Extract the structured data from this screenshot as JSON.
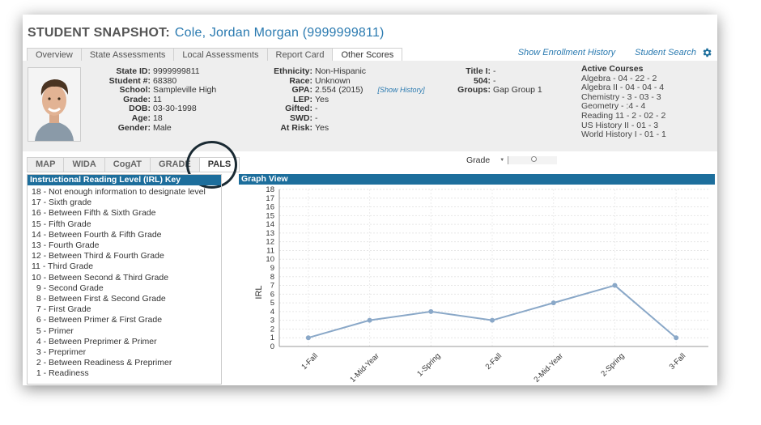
{
  "header": {
    "title": "STUDENT SNAPSHOT:",
    "student_name": "Cole, Jordan Morgan  (9999999811)"
  },
  "tabs": [
    "Overview",
    "State Assessments",
    "Local Assessments",
    "Report Card",
    "Other Scores"
  ],
  "links": {
    "enrollment": "Show Enrollment History",
    "search": "Student Search"
  },
  "student": [
    {
      "label": "State ID:",
      "value": "9999999811"
    },
    {
      "label": "Student #:",
      "value": "68380"
    },
    {
      "label": "School:",
      "value": "Sampleville High"
    },
    {
      "label": "Grade:",
      "value": "11"
    },
    {
      "label": "DOB:",
      "value": "03-30-1998"
    },
    {
      "label": "Age:",
      "value": "18"
    },
    {
      "label": "Gender:",
      "value": "Male"
    }
  ],
  "demographics": [
    {
      "label": "Ethnicity:",
      "value": "Non-Hispanic"
    },
    {
      "label": "Race:",
      "value": "Unknown"
    },
    {
      "label": "GPA:",
      "value": "2.554 (2015)"
    },
    {
      "label": "LEP:",
      "value": "Yes"
    },
    {
      "label": "Gifted:",
      "value": "-"
    },
    {
      "label": "SWD:",
      "value": "-"
    },
    {
      "label": "At Risk:",
      "value": "Yes"
    }
  ],
  "show_history": "[Show History]",
  "programs": [
    {
      "label": "Title I:",
      "value": "-"
    },
    {
      "label": "504:",
      "value": "-"
    },
    {
      "label": "Groups:",
      "value": "Gap Group 1"
    }
  ],
  "courses": {
    "heading": "Active Courses",
    "items": [
      "Algebra - 04 - 22 - 2",
      "Algebra II - 04 - 04 - 4",
      "Chemistry - 3 - 03 - 3",
      "Geometry - :4 - 4",
      "Reading 11 - 2 - 02 - 2",
      "US History II - 01 - 3",
      "World History I - 01 - 1"
    ]
  },
  "subtabs": [
    "MAP",
    "WIDA",
    "CogAT",
    "GRADE",
    "PALS"
  ],
  "grade_filter": {
    "label": "Grade"
  },
  "irl_panel": {
    "title": "Instructional Reading Level (IRL) Key",
    "items": [
      "18 - Not enough information to designate level",
      "17 - Sixth grade",
      "16 - Between Fifth & Sixth Grade",
      "15 - Fifth Grade",
      "14 - Between Fourth & Fifth Grade",
      "13 - Fourth Grade",
      "12 - Between Third & Fourth Grade",
      "11 - Third Grade",
      "10 - Between Second & Third Grade",
      "  9 - Second Grade",
      "  8 - Between First & Second Grade",
      "  7 - First Grade",
      "  6 - Between Primer & First Grade",
      "  5 - Primer",
      "  4 - Between Preprimer & Primer",
      "  3 - Preprimer",
      "  2 - Between Readiness & Preprimer",
      "  1 - Readiness"
    ]
  },
  "graph_panel": {
    "title": "Graph View"
  },
  "chart_data": {
    "type": "line",
    "ylabel": "IRL",
    "xlabel": "",
    "categories": [
      "1-Fall",
      "1-Mid-Year",
      "1-Spring",
      "2-Fall",
      "2-Mid-Year",
      "2-Spring",
      "3-Fall"
    ],
    "values": [
      1,
      3,
      4,
      3,
      5,
      7,
      1
    ],
    "ylim": [
      0,
      18
    ],
    "yticks": [
      0,
      1,
      2,
      3,
      4,
      5,
      6,
      7,
      8,
      9,
      10,
      11,
      12,
      13,
      14,
      15,
      16,
      17,
      18
    ],
    "grid": true,
    "color": "#8aa8c8"
  },
  "colors": {
    "accent": "#1d6e9c",
    "link": "#2a7ab0"
  }
}
